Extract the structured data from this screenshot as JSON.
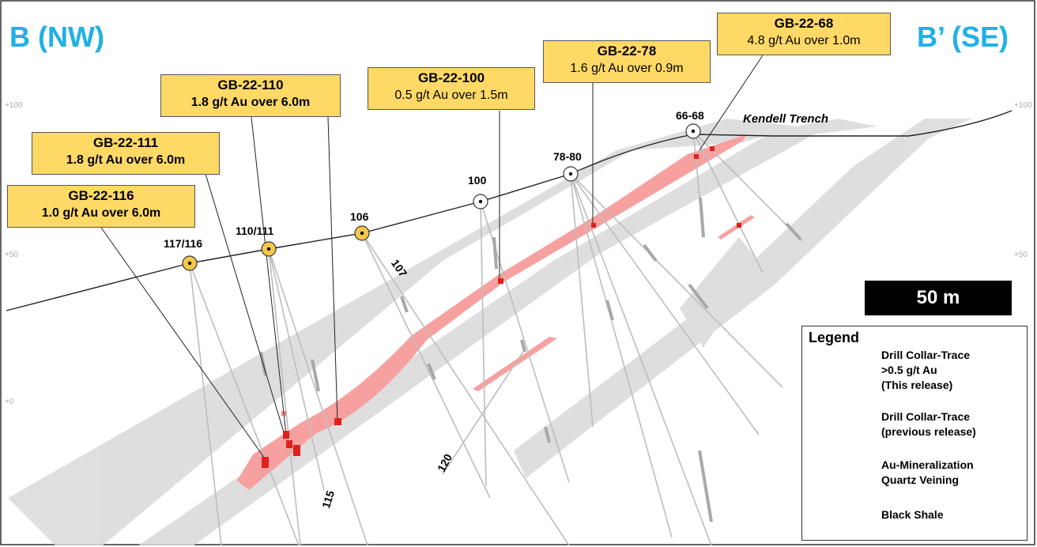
{
  "section": {
    "left_label": "B (NW)",
    "right_label": "B’ (SE)",
    "scale_bar": "50 m",
    "elevation_ticks": {
      "upper": "+100",
      "middle": "+50",
      "lower": "+0"
    },
    "trench_label": "Kendell Trench"
  },
  "callouts": [
    {
      "hole": "GB-22-110",
      "result": "1.8 g/t Au over 6.0m"
    },
    {
      "hole": "GB-22-111",
      "result": "1.8 g/t Au over 6.0m"
    },
    {
      "hole": "GB-22-116",
      "result": "1.0 g/t Au over 6.0m"
    },
    {
      "hole": "GB-22-100",
      "result": "0.5 g/t Au over 1.5m"
    },
    {
      "hole": "GB-22-78",
      "result": "1.6 g/t Au over 0.9m"
    },
    {
      "hole": "GB-22-68",
      "result": "4.8 g/t Au over 1.0m"
    }
  ],
  "collars": {
    "117_116": "117/116",
    "110_111": "110/111",
    "106": "106",
    "100": "100",
    "78_80": "78-80",
    "66_68": "66-68"
  },
  "trace_labels": {
    "t107": "107",
    "t120": "120",
    "t115": "115"
  },
  "legend": {
    "title": "Legend",
    "collar_new": "Drill Collar-Trace\n>0.5 g/t Au\n(This release)",
    "collar_prev": "Drill Collar-Trace\n(previous release)",
    "mineralization": "Au-Mineralization\nQuartz Veining",
    "shale": "Black Shale"
  },
  "colors": {
    "title_blue": "#1fb1e6",
    "callout_fill": "#ffd966",
    "collar_new_fill": "#f5c74a",
    "mineralization": "#f7a0a0",
    "intercept_red": "#e0211b",
    "shale": "#d9d9d9"
  }
}
